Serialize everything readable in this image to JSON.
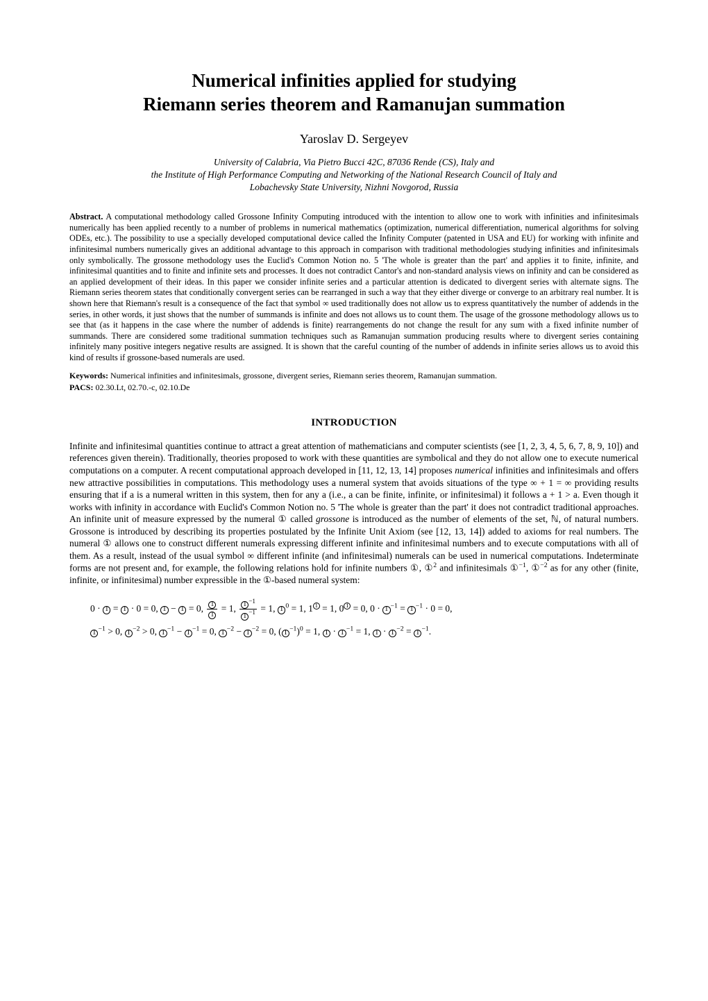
{
  "title_line1": "Numerical infinities applied for studying",
  "title_line2": "Riemann series theorem and Ramanujan summation",
  "author": "Yaroslav D. Sergeyev",
  "affil_line1": "University of Calabria, Via Pietro Bucci 42C, 87036 Rende (CS), Italy and",
  "affil_line2": "the Institute of High Performance Computing and Networking of the National Research Council of Italy and",
  "affil_line3": "Lobachevsky State University, Nizhni Novgorod, Russia",
  "abstract_label": "Abstract.",
  "abstract_body": " A computational methodology called Grossone Infinity Computing introduced with the intention to allow one to work with infinities and infinitesimals numerically has been applied recently to a number of problems in numerical mathematics (optimization, numerical differentiation, numerical algorithms for solving ODEs, etc.). The possibility to use a specially developed computational device called the Infinity Computer (patented in USA and EU) for working with infinite and infinitesimal numbers numerically gives an additional advantage to this approach in comparison with traditional methodologies studying infinities and infinitesimals only symbolically. The grossone methodology uses the Euclid's Common Notion no. 5 'The whole is greater than the part' and applies it to finite, infinite, and infinitesimal quantities and to finite and infinite sets and processes. It does not contradict Cantor's and non-standard analysis views on infinity and can be considered as an applied development of their ideas. In this paper we consider infinite series and a particular attention is dedicated to divergent series with alternate signs. The Riemann series theorem states that conditionally convergent series can be rearranged in such a way that they either diverge or converge to an arbitrary real number. It is shown here that Riemann's result is a consequence of the fact that symbol ∞ used traditionally does not allow us to express quantitatively the number of addends in the series, in other words, it just shows that the number of summands is infinite and does not allows us to count them. The usage of the grossone methodology allows us to see that (as it happens in the case where the number of addends is finite) rearrangements do not change the result for any sum with a fixed infinite number of summands. There are considered some traditional summation techniques such as Ramanujan summation producing results where to divergent series containing infinitely many positive integers negative results are assigned. It is shown that the careful counting of the number of addends in infinite series allows us to avoid this kind of results if grossone-based numerals are used.",
  "keywords_label": "Keywords:",
  "keywords_body": " Numerical infinities and infinitesimals, grossone, divergent series, Riemann series theorem, Ramanujan summation.",
  "pacs_label": "PACS:",
  "pacs_body": " 02.30.Lt, 02.70.-c, 02.10.De",
  "section_intro": "INTRODUCTION",
  "intro_part1": "Infinite and infinitesimal quantities continue to attract a great attention of mathematicians and computer scientists (see [1, 2, 3, 4, 5, 6, 7, 8, 9, 10]) and references given therein). Traditionally, theories proposed to work with these quantities are symbolical and they do not allow one to execute numerical computations on a computer. A recent computational approach developed in [11, 12, 13, 14] proposes ",
  "intro_emph": "numerical",
  "intro_part2": " infinities and infinitesimals and offers new attractive possibilities in computations. This methodology uses a numeral system that avoids situations of the type ∞ + 1 = ∞ providing results ensuring that if a is a numeral written in this system, then for any a (i.e., a can be finite, infinite, or infinitesimal) it follows a + 1 > a. Even though it works with infinity in accordance with Euclid's Common Notion no. 5 'The whole is greater than the part' it does not contradict traditional approaches. An infinite unit of measure expressed by the numeral ① called ",
  "intro_emph2": "grossone",
  "intro_part3": " is introduced as the number of elements of the set, ℕ, of natural numbers. Grossone is introduced by describing its properties postulated by the Infinite Unit Axiom (see [12, 13, 14]) added to axioms for real numbers. The numeral ① allows one to construct different numerals expressing different infinite and infinitesimal numbers and to execute computations with all of them. As a result, instead of the usual symbol ∞ different infinite (and infinitesimal) numerals can be used in numerical computations. Indeterminate forms are not present and, for example, the following relations hold for infinite numbers ①, ①",
  "intro_sup2": "2",
  "intro_part4": " and infinitesimals ①",
  "intro_supm1": "−1",
  "intro_part5": ", ①",
  "intro_supm2": "−2",
  "intro_part6": " as for any other (finite, infinite, or infinitesimal) number expressible in the ①-based numeral system:",
  "eq": {
    "zero_times": "0 · ",
    "eq1_a": " · 0 = 0,   ",
    "minus0": " − ",
    "eq0": " = 0,   ",
    "ratio_eq1": " = 1,   ",
    "pow0_eq1": " = 1,   1",
    "eq1b": " = 1,   0",
    "eq0b": " = 0,   0 · ",
    "m1dot0": " · 0 = 0,",
    "gt0a": " > 0,   ",
    "gt0b": " > 0,   ",
    "diff0a": " = 0,   ",
    "diff0b": " = 0,   (",
    "pow0_eq1b": " = 1,   ",
    "prod1": " = 1,   ",
    "last": "."
  }
}
